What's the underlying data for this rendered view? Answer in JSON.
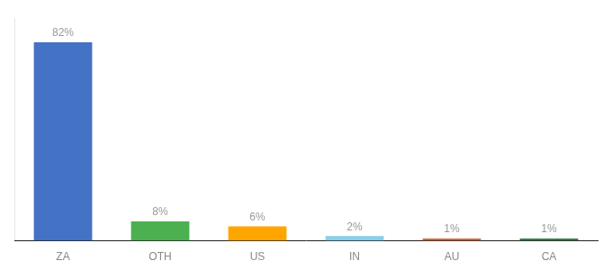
{
  "chart_data": {
    "type": "bar",
    "categories": [
      "ZA",
      "OTH",
      "US",
      "IN",
      "AU",
      "CA"
    ],
    "values": [
      82,
      8,
      6,
      2,
      1,
      1
    ],
    "value_labels": [
      "82%",
      "8%",
      "6%",
      "2%",
      "1%",
      "1%"
    ],
    "colors": [
      "#4472C4",
      "#4CAF50",
      "#FFA500",
      "#87CEEB",
      "#CD6B3C",
      "#3A7D44"
    ],
    "ylim": [
      0,
      92
    ],
    "data_labels": true,
    "tick_labels": "x",
    "grid": false
  }
}
